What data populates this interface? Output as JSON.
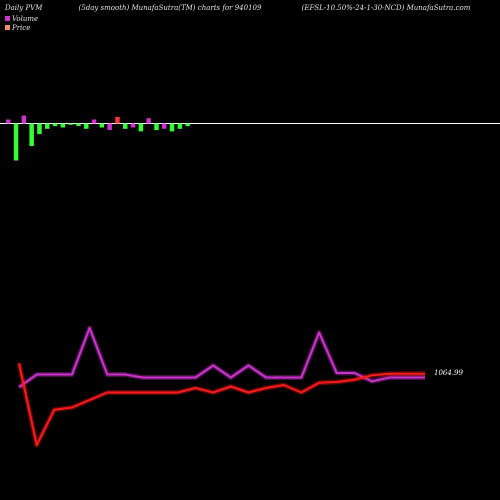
{
  "header": {
    "left": "Daily PVM",
    "center": "(5day smooth) MunafaSutra(TM) charts for 940109",
    "right": "(EFSL-10.50%-24-1-30-NCD) MunafaSutra.com"
  },
  "legend": {
    "volume_label": "Volume",
    "price_label": "Price",
    "volume_color": "#cc33cc",
    "price_color": "#ff8c69"
  },
  "colors": {
    "background": "#000000",
    "baseline": "#ffffff",
    "volume_up": "#33ff33",
    "volume_down": "#ff3333",
    "volume_neutral": "#cc33cc",
    "price_line": "#ff1a1a",
    "pvm_line": "#cc33cc"
  },
  "price_readout": "1064.99",
  "chart_data": [
    {
      "type": "bar",
      "title": "",
      "series": [
        {
          "values": [
            3,
            -28,
            6,
            -17,
            -8,
            -4,
            -2,
            -3,
            -1,
            -2,
            -4,
            3,
            -3,
            -5,
            5,
            -4,
            -3,
            -6,
            4,
            -5,
            -4,
            -6,
            -4,
            -2
          ],
          "colors": [
            "#cc33cc",
            "#33ff33",
            "#cc33cc",
            "#33ff33",
            "#33ff33",
            "#33ff33",
            "#33ff33",
            "#33ff33",
            "#33ff33",
            "#33ff33",
            "#33ff33",
            "#cc33cc",
            "#33ff33",
            "#cc33cc",
            "#ff3333",
            "#33ff33",
            "#cc33cc",
            "#33ff33",
            "#cc33cc",
            "#33ff33",
            "#cc33cc",
            "#33ff33",
            "#33ff33",
            "#33ff33"
          ]
        }
      ],
      "ylim": [
        -30,
        12
      ],
      "grid": false
    },
    {
      "type": "line",
      "title": "",
      "x": [
        1,
        2,
        3,
        4,
        5,
        6,
        7,
        8,
        9,
        10,
        11,
        12,
        13,
        14,
        15,
        16,
        17,
        18,
        19,
        20,
        21,
        22,
        23,
        24
      ],
      "series": [
        {
          "values": [
            1061.7,
            1063.4,
            1063.4,
            1063.4,
            1069.6,
            1063.4,
            1063.4,
            1063.0,
            1063.0,
            1063.0,
            1063.0,
            1064.6,
            1063.0,
            1064.6,
            1063.0,
            1063.0,
            1063.0,
            1069.0,
            1063.6,
            1063.6,
            1062.5,
            1063.0,
            1063.0,
            1063.0
          ]
        },
        {
          "values": [
            1064.9,
            1054.0,
            1058.7,
            1059.0,
            1060.0,
            1061.0,
            1061.0,
            1061.0,
            1061.0,
            1061.0,
            1061.6,
            1061.0,
            1061.8,
            1061.0,
            1061.6,
            1062.0,
            1061.0,
            1062.3,
            1062.4,
            1062.7,
            1063.3,
            1063.5,
            1063.5,
            1063.5
          ]
        }
      ],
      "ylim": [
        1050,
        1072
      ],
      "grid": false
    }
  ]
}
